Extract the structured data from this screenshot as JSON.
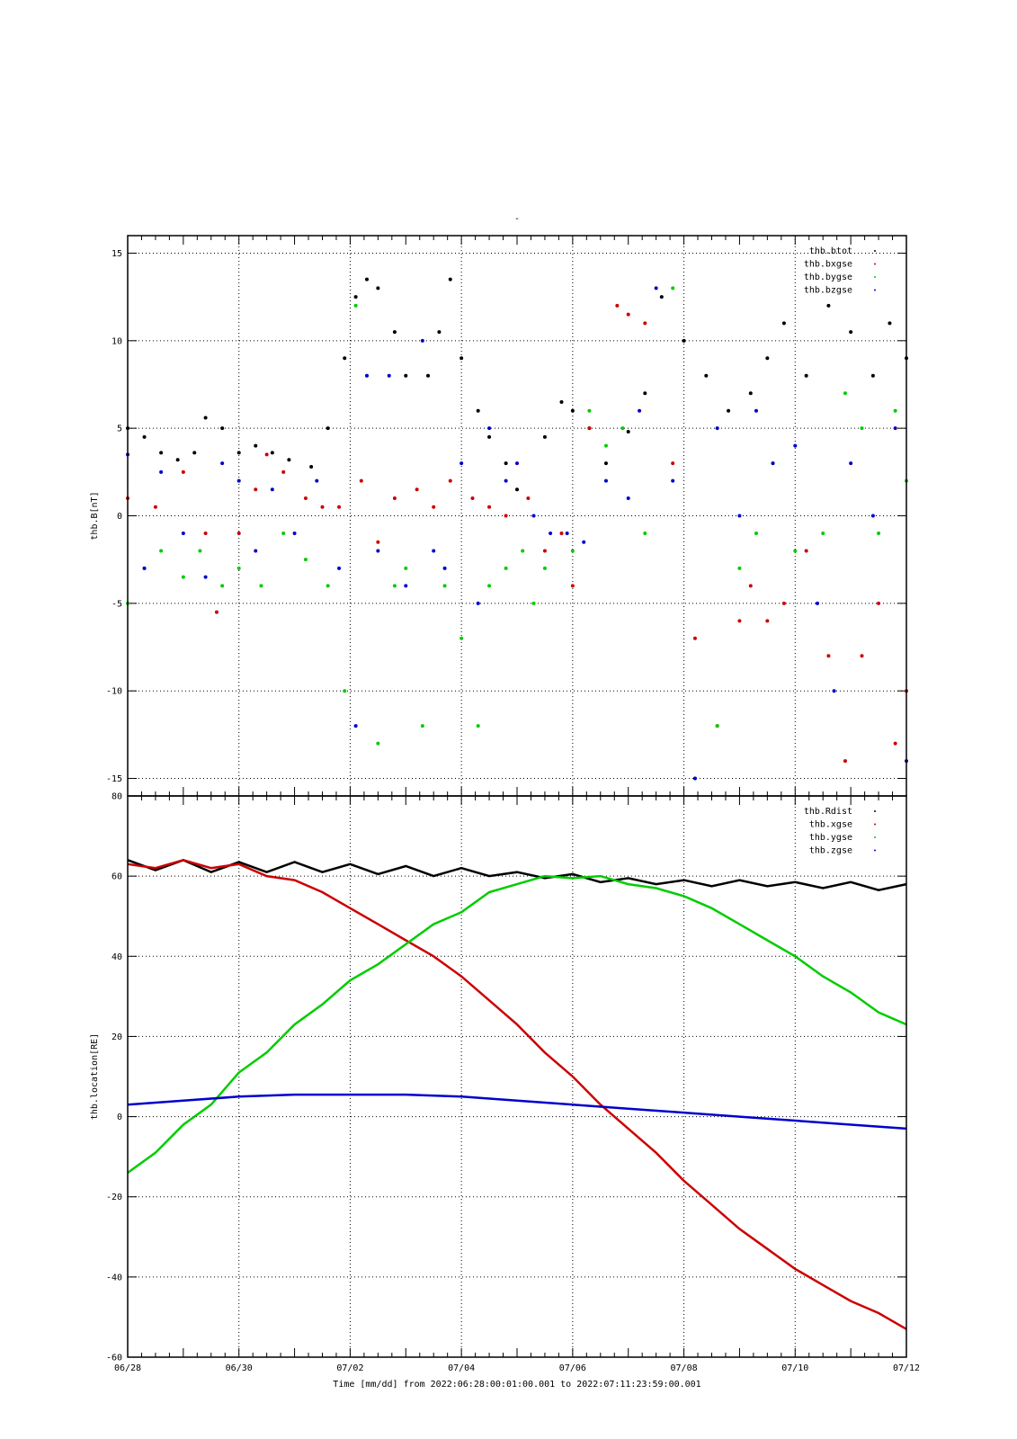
{
  "title": "-",
  "colors": {
    "black": "#000000",
    "red": "#cc0000",
    "green": "#00cc00",
    "blue": "#0000cc"
  },
  "x_axis": {
    "tick_labels": [
      "06/28",
      "06/30",
      "07/02",
      "07/04",
      "07/06",
      "07/08",
      "07/10",
      "07/12"
    ],
    "label": "Time [mm/dd]  from 2022:06:28:00:01:00.001  to  2022:07:11:23:59:00.001"
  },
  "chart_data": [
    {
      "type": "scatter",
      "ylabel": "thb.B[nT]",
      "xlim": [
        0,
        14
      ],
      "ylim": [
        -16,
        16
      ],
      "yticks": [
        -15,
        -10,
        -5,
        0,
        5,
        10,
        15
      ],
      "grid": true,
      "legend_placement": "top-right",
      "series": [
        {
          "name": "thb.btot",
          "color": "#000000",
          "x": [
            0,
            0.3,
            0.6,
            0.9,
            1.2,
            1.4,
            1.7,
            2.0,
            2.3,
            2.6,
            2.9,
            3.3,
            3.6,
            3.9,
            4.1,
            4.3,
            4.5,
            4.8,
            5.0,
            5.4,
            5.6,
            5.8,
            6.0,
            6.3,
            6.5,
            6.8,
            7.0,
            7.5,
            7.8,
            8.0,
            8.3,
            8.6,
            9.0,
            9.3,
            9.6,
            10.0,
            10.4,
            10.8,
            11.2,
            11.5,
            11.8,
            12.2,
            12.6,
            13.0,
            13.4,
            13.7,
            14.0
          ],
          "y": [
            5,
            4.5,
            3.6,
            3.2,
            3.6,
            5.6,
            5.0,
            3.6,
            4.0,
            3.6,
            3.2,
            2.8,
            5.0,
            9.0,
            12.5,
            13.5,
            13.0,
            10.5,
            8.0,
            8.0,
            10.5,
            13.5,
            9.0,
            6.0,
            4.5,
            3.0,
            1.5,
            4.5,
            6.5,
            6.0,
            5.0,
            3.0,
            4.8,
            7.0,
            12.5,
            10.0,
            8.0,
            6.0,
            7.0,
            9.0,
            11.0,
            8.0,
            12.0,
            10.5,
            8.0,
            11.0,
            9.0
          ]
        },
        {
          "name": "thb.bxgse",
          "color": "#cc0000",
          "x": [
            0,
            0.5,
            1.0,
            1.4,
            1.6,
            2.0,
            2.3,
            2.5,
            2.8,
            3.2,
            3.5,
            3.8,
            4.2,
            4.5,
            4.8,
            5.2,
            5.5,
            5.8,
            6.2,
            6.5,
            6.8,
            7.2,
            7.5,
            7.8,
            8.0,
            8.3,
            8.8,
            9.0,
            9.3,
            9.8,
            10.2,
            10.6,
            11.0,
            11.2,
            11.5,
            11.8,
            12.2,
            12.6,
            12.9,
            13.2,
            13.5,
            13.8,
            14.0
          ],
          "y": [
            1.0,
            0.5,
            2.5,
            -1.0,
            -5.5,
            -1.0,
            1.5,
            3.5,
            2.5,
            1.0,
            0.5,
            0.5,
            2.0,
            -1.5,
            1.0,
            1.5,
            0.5,
            2.0,
            1.0,
            0.5,
            0.0,
            1.0,
            -2.0,
            -1.0,
            -4.0,
            5.0,
            12.0,
            11.5,
            11.0,
            3.0,
            -7.0,
            -12.0,
            -6.0,
            -4.0,
            -6.0,
            -5.0,
            -2.0,
            -8.0,
            -14.0,
            -8.0,
            -5.0,
            -13.0,
            -10.0
          ]
        },
        {
          "name": "thb.bygse",
          "color": "#00cc00",
          "x": [
            0,
            0.3,
            0.6,
            1.0,
            1.3,
            1.7,
            2.0,
            2.4,
            2.8,
            3.2,
            3.6,
            3.9,
            4.1,
            4.3,
            4.5,
            4.8,
            5.0,
            5.3,
            5.7,
            6.0,
            6.3,
            6.5,
            6.8,
            7.1,
            7.3,
            7.5,
            8.0,
            8.3,
            8.6,
            8.9,
            9.3,
            9.8,
            10.2,
            10.6,
            11.0,
            11.3,
            11.6,
            12.0,
            12.5,
            12.9,
            13.2,
            13.5,
            13.8,
            14.0
          ],
          "y": [
            -5.0,
            -3.0,
            -2.0,
            -3.5,
            -2.0,
            -4.0,
            -3.0,
            -4.0,
            -1.0,
            -2.5,
            -4.0,
            -10.0,
            12.0,
            8.0,
            -13.0,
            -4.0,
            -3.0,
            -12.0,
            -4.0,
            -7.0,
            -12.0,
            -4.0,
            -3.0,
            -2.0,
            -5.0,
            -3.0,
            -2.0,
            6.0,
            4.0,
            5.0,
            -1.0,
            13.0,
            -15.0,
            -12.0,
            -3.0,
            -1.0,
            3.0,
            -2.0,
            -1.0,
            7.0,
            5.0,
            -1.0,
            6.0,
            2.0
          ]
        },
        {
          "name": "thb.bzgse",
          "color": "#0000cc",
          "x": [
            0,
            0.3,
            0.6,
            1.0,
            1.4,
            1.7,
            2.0,
            2.3,
            2.6,
            3.0,
            3.4,
            3.8,
            4.1,
            4.3,
            4.5,
            4.7,
            5.0,
            5.3,
            5.5,
            5.7,
            6.0,
            6.3,
            6.5,
            6.8,
            7.0,
            7.3,
            7.6,
            7.9,
            8.2,
            8.6,
            9.0,
            9.2,
            9.5,
            9.8,
            10.2,
            10.6,
            11.0,
            11.3,
            11.6,
            12.0,
            12.4,
            12.7,
            13.0,
            13.4,
            13.8,
            14.0
          ],
          "y": [
            3.5,
            -3.0,
            2.5,
            -1.0,
            -3.5,
            3.0,
            2.0,
            -2.0,
            1.5,
            -1.0,
            2.0,
            -3.0,
            -12.0,
            8.0,
            -2.0,
            8.0,
            -4.0,
            10.0,
            -2.0,
            -3.0,
            3.0,
            -5.0,
            5.0,
            2.0,
            3.0,
            0.0,
            -1.0,
            -1.0,
            -1.5,
            2.0,
            1.0,
            6.0,
            13.0,
            2.0,
            -15.0,
            5.0,
            0.0,
            6.0,
            3.0,
            4.0,
            -5.0,
            -10.0,
            3.0,
            0.0,
            5.0,
            -14.0
          ]
        }
      ]
    },
    {
      "type": "line",
      "ylabel": "thb.location[RE]",
      "xlim": [
        0,
        14
      ],
      "ylim": [
        -60,
        80
      ],
      "yticks": [
        -60,
        -40,
        -20,
        0,
        20,
        40,
        60,
        80
      ],
      "grid": true,
      "legend_placement": "top-right",
      "series": [
        {
          "name": "thb.Rdist",
          "color": "#000000",
          "x": [
            0,
            0.5,
            1.0,
            1.5,
            2.0,
            2.5,
            3.0,
            3.5,
            4.0,
            4.5,
            5.0,
            5.5,
            6.0,
            6.5,
            7.0,
            7.5,
            8.0,
            8.5,
            9.0,
            9.5,
            10.0,
            10.5,
            11.0,
            11.5,
            12.0,
            12.5,
            13.0,
            13.5,
            14.0
          ],
          "y": [
            64,
            61.5,
            64,
            61,
            63.5,
            61,
            63.5,
            61,
            63,
            60.5,
            62.5,
            60,
            62,
            60,
            61,
            59.5,
            60.5,
            58.5,
            59.5,
            58,
            59,
            57.5,
            59,
            57.5,
            58.5,
            57,
            58.5,
            56.5,
            58
          ]
        },
        {
          "name": "thb.xgse",
          "color": "#cc0000",
          "x": [
            0,
            0.5,
            1.0,
            1.5,
            2.0,
            2.5,
            3.0,
            3.5,
            4.0,
            4.5,
            5.0,
            5.5,
            6.0,
            6.5,
            7.0,
            7.5,
            8.0,
            8.5,
            9.0,
            9.5,
            10.0,
            10.5,
            11.0,
            11.5,
            12.0,
            12.5,
            13.0,
            13.5,
            14.0
          ],
          "y": [
            63,
            62,
            64,
            62,
            63,
            60,
            59,
            56,
            52,
            48,
            44,
            40,
            35,
            29,
            23,
            16,
            10,
            3,
            -3,
            -9,
            -16,
            -22,
            -28,
            -33,
            -38,
            -42,
            -46,
            -49,
            -53
          ]
        },
        {
          "name": "thb.ygse",
          "color": "#00cc00",
          "x": [
            0,
            0.5,
            1.0,
            1.5,
            2.0,
            2.5,
            3.0,
            3.5,
            4.0,
            4.5,
            5.0,
            5.5,
            6.0,
            6.5,
            7.0,
            7.5,
            8.0,
            8.5,
            9.0,
            9.5,
            10.0,
            10.5,
            11.0,
            11.5,
            12.0,
            12.5,
            13.0,
            13.5,
            14.0
          ],
          "y": [
            -14,
            -9,
            -2,
            3,
            11,
            16,
            23,
            28,
            34,
            38,
            43,
            48,
            51,
            56,
            58,
            60,
            59.5,
            60,
            58,
            57,
            55,
            52,
            48,
            44,
            40,
            35,
            31,
            26,
            23
          ]
        },
        {
          "name": "thb.zgse",
          "color": "#0000cc",
          "x": [
            0,
            1,
            2,
            3,
            4,
            5,
            6,
            7,
            8,
            9,
            10,
            11,
            12,
            13,
            14
          ],
          "y": [
            3,
            4,
            5,
            5.5,
            5.5,
            5.5,
            5,
            4,
            3,
            2,
            1,
            0,
            -1,
            -2,
            -3
          ]
        }
      ]
    }
  ]
}
